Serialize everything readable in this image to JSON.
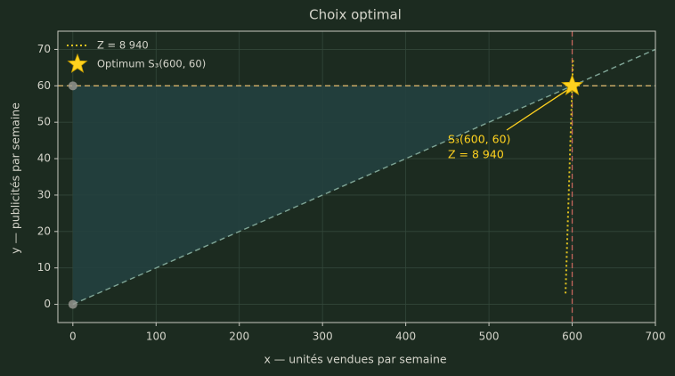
{
  "chart_data": {
    "type": "line",
    "title": "Choix optimal",
    "x_label": "x — unités vendues par semaine",
    "y_label": "y — publicités par semaine",
    "xlim": [
      -18,
      700
    ],
    "ylim": [
      -5,
      75
    ],
    "xticks": [
      0,
      100,
      200,
      300,
      400,
      500,
      600,
      700
    ],
    "yticks": [
      0,
      10,
      20,
      30,
      40,
      50,
      60,
      70
    ],
    "grid": true,
    "legend": "upper left",
    "region": {
      "x": [
        0,
        0,
        600
      ],
      "y": [
        0,
        60,
        60
      ],
      "color": "#24403f"
    },
    "series": [
      {
        "name": "Z = 8 940",
        "color": "#e0c21f",
        "style": "dotted",
        "x": [
          592,
          601
        ],
        "values": [
          3,
          67
        ]
      },
      {
        "color": "#7fa596",
        "style": "dashed",
        "x": [
          0,
          700
        ],
        "values": [
          0,
          70
        ]
      }
    ],
    "hlines": [
      {
        "value": 60,
        "color": "#d2b06a"
      }
    ],
    "vlines": [
      {
        "value": 600,
        "color": "#c4665c"
      }
    ],
    "points": {
      "color": "#9a9a94",
      "x": [
        0,
        0
      ],
      "values": [
        0,
        60
      ]
    },
    "optimum": {
      "name": "Optimum S₃(600, 60)",
      "color": "#ffd21f",
      "x": 600,
      "value": 60
    },
    "annotation": [
      "S₃(600, 60)",
      "Z = 8 940"
    ]
  }
}
